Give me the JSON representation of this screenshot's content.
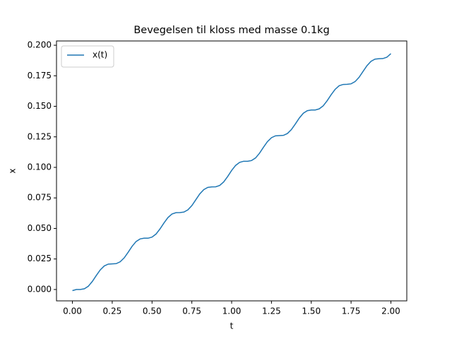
{
  "chart_data": {
    "type": "line",
    "title": "Bevegelsen til kloss med masse 0.1kg",
    "xlabel": "t",
    "ylabel": "x",
    "x": [
      0,
      0.025,
      0.05,
      0.075,
      0.1,
      0.125,
      0.15,
      0.175,
      0.2,
      0.225,
      0.25,
      0.275,
      0.3,
      0.325,
      0.35,
      0.375,
      0.4,
      0.425,
      0.45,
      0.475,
      0.5,
      0.525,
      0.55,
      0.575,
      0.6,
      0.625,
      0.65,
      0.675,
      0.7,
      0.725,
      0.75,
      0.775,
      0.8,
      0.825,
      0.85,
      0.875,
      0.9,
      0.925,
      0.95,
      0.975,
      1.0,
      1.025,
      1.05,
      1.075,
      1.1,
      1.125,
      1.15,
      1.175,
      1.2,
      1.225,
      1.25,
      1.275,
      1.3,
      1.325,
      1.35,
      1.375,
      1.4,
      1.425,
      1.45,
      1.475,
      1.5,
      1.525,
      1.55,
      1.575,
      1.6,
      1.625,
      1.65,
      1.675,
      1.7,
      1.725,
      1.75,
      1.775,
      1.8,
      1.825,
      1.85,
      1.875,
      1.9,
      1.925,
      1.95,
      1.975,
      2.0
    ],
    "series": [
      {
        "name": "x(t)",
        "color": "#1f77b4",
        "values": [
          -0.0009,
          0.0,
          0.0,
          0.0006,
          0.0027,
          0.0066,
          0.0115,
          0.0161,
          0.0193,
          0.0208,
          0.021,
          0.0212,
          0.0227,
          0.0259,
          0.0305,
          0.0354,
          0.0393,
          0.0414,
          0.042,
          0.042,
          0.0429,
          0.0454,
          0.0496,
          0.0545,
          0.0589,
          0.0618,
          0.0629,
          0.063,
          0.0634,
          0.0652,
          0.0687,
          0.0735,
          0.0783,
          0.0818,
          0.0836,
          0.084,
          0.0841,
          0.0852,
          0.0881,
          0.0925,
          0.0975,
          0.1016,
          0.1041,
          0.105,
          0.105,
          0.1056,
          0.1077,
          0.1116,
          0.1165,
          0.1211,
          0.1243,
          0.1258,
          0.126,
          0.1262,
          0.1277,
          0.1309,
          0.1355,
          0.1404,
          0.1443,
          0.1464,
          0.147,
          0.147,
          0.1479,
          0.1504,
          0.1546,
          0.1595,
          0.1639,
          0.1668,
          0.1679,
          0.168,
          0.1684,
          0.1702,
          0.1737,
          0.1785,
          0.1833,
          0.1868,
          0.1886,
          0.189,
          0.1891,
          0.1902,
          0.1931
        ]
      }
    ],
    "xlim": [
      -0.1,
      2.1
    ],
    "ylim": [
      -0.0093,
      0.2035
    ],
    "xticks": [
      {
        "value": 0,
        "label": "0.00"
      },
      {
        "value": 0.25,
        "label": "0.25"
      },
      {
        "value": 0.5,
        "label": "0.50"
      },
      {
        "value": 0.75,
        "label": "0.75"
      },
      {
        "value": 1,
        "label": "1.00"
      },
      {
        "value": 1.25,
        "label": "1.25"
      },
      {
        "value": 1.5,
        "label": "1.50"
      },
      {
        "value": 1.75,
        "label": "1.75"
      },
      {
        "value": 2,
        "label": "2.00"
      }
    ],
    "yticks": [
      {
        "value": 0,
        "label": "0.000"
      },
      {
        "value": 0.025,
        "label": "0.025"
      },
      {
        "value": 0.05,
        "label": "0.050"
      },
      {
        "value": 0.075,
        "label": "0.075"
      },
      {
        "value": 0.1,
        "label": "0.100"
      },
      {
        "value": 0.125,
        "label": "0.125"
      },
      {
        "value": 0.15,
        "label": "0.150"
      },
      {
        "value": 0.175,
        "label": "0.175"
      },
      {
        "value": 0.2,
        "label": "0.200"
      }
    ],
    "grid": false,
    "legend": "upper left"
  }
}
